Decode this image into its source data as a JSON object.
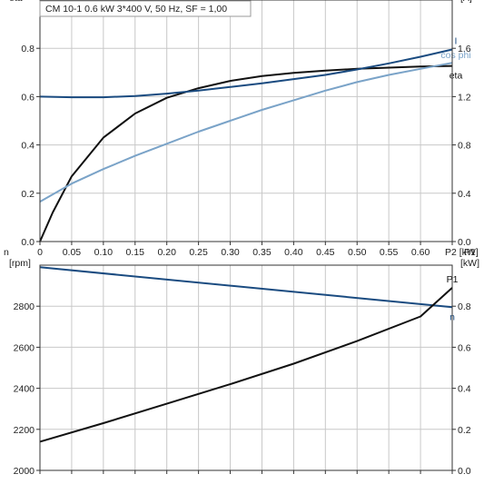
{
  "header": "CM 10-1   0.6 kW   3*400 V, 50 Hz, SF = 1,00",
  "colors": {
    "eta": "#111111",
    "cos_phi": "#7aa3c8",
    "I": "#1a4b80",
    "n": "#1a4b80",
    "P1": "#111111",
    "grid": "#c8c8c8"
  },
  "chart_data": [
    {
      "type": "line",
      "xlabel": "P2 [kW]",
      "xlim": [
        0,
        0.65
      ],
      "xticks": [
        "0",
        "0.05",
        "0.10",
        "0.15",
        "0.20",
        "0.25",
        "0.30",
        "0.35",
        "0.40",
        "0.45",
        "0.50",
        "0.55",
        "0.60",
        "P2 [kW]"
      ],
      "ylabel_left": [
        "cos phi",
        "eta"
      ],
      "ylim_left": [
        0,
        1.0
      ],
      "yticks_left": [
        "0.0",
        "0.2",
        "0.4",
        "0.6",
        "0.8"
      ],
      "ylabel_right": [
        "I",
        "[A]"
      ],
      "ylim_right": [
        0,
        2.0
      ],
      "yticks_right": [
        "0.0",
        "0.4",
        "0.8",
        "1.2",
        "1.6"
      ],
      "grid": true,
      "series": [
        {
          "name": "eta",
          "axis": "left",
          "x": [
            0,
            0.02,
            0.05,
            0.1,
            0.15,
            0.2,
            0.25,
            0.3,
            0.35,
            0.4,
            0.45,
            0.5,
            0.55,
            0.6,
            0.65
          ],
          "y": [
            0,
            0.12,
            0.27,
            0.43,
            0.53,
            0.595,
            0.635,
            0.665,
            0.685,
            0.698,
            0.708,
            0.715,
            0.72,
            0.725,
            0.727
          ]
        },
        {
          "name": "cos phi",
          "axis": "left",
          "x": [
            0,
            0.05,
            0.1,
            0.15,
            0.2,
            0.25,
            0.3,
            0.35,
            0.4,
            0.45,
            0.5,
            0.55,
            0.6,
            0.65
          ],
          "y": [
            0.165,
            0.24,
            0.3,
            0.355,
            0.405,
            0.455,
            0.5,
            0.545,
            0.585,
            0.625,
            0.66,
            0.69,
            0.715,
            0.74
          ]
        },
        {
          "name": "I",
          "axis": "right",
          "x": [
            0,
            0.05,
            0.1,
            0.15,
            0.2,
            0.25,
            0.3,
            0.35,
            0.4,
            0.45,
            0.5,
            0.55,
            0.6,
            0.65
          ],
          "y": [
            1.2,
            1.195,
            1.195,
            1.205,
            1.225,
            1.25,
            1.28,
            1.31,
            1.345,
            1.38,
            1.425,
            1.475,
            1.53,
            1.59
          ]
        }
      ]
    },
    {
      "type": "line",
      "xlim": [
        0,
        0.65
      ],
      "ylabel_left": [
        "n",
        "[rpm]"
      ],
      "ylim_left": [
        2000,
        3000
      ],
      "yticks_left": [
        "2000",
        "2200",
        "2400",
        "2600",
        "2800"
      ],
      "ylabel_right": [
        "P1",
        "[kW]"
      ],
      "ylim_right": [
        0,
        1.0
      ],
      "yticks_right": [
        "0.0",
        "0.2",
        "0.4",
        "0.6",
        "0.8"
      ],
      "grid": true,
      "series": [
        {
          "name": "n",
          "axis": "left",
          "x": [
            0,
            0.65
          ],
          "y": [
            2990,
            2795
          ]
        },
        {
          "name": "P1",
          "axis": "right",
          "x": [
            0,
            0.1,
            0.2,
            0.3,
            0.4,
            0.5,
            0.6,
            0.65
          ],
          "y": [
            0.14,
            0.23,
            0.325,
            0.42,
            0.52,
            0.63,
            0.75,
            0.89
          ]
        }
      ]
    }
  ]
}
